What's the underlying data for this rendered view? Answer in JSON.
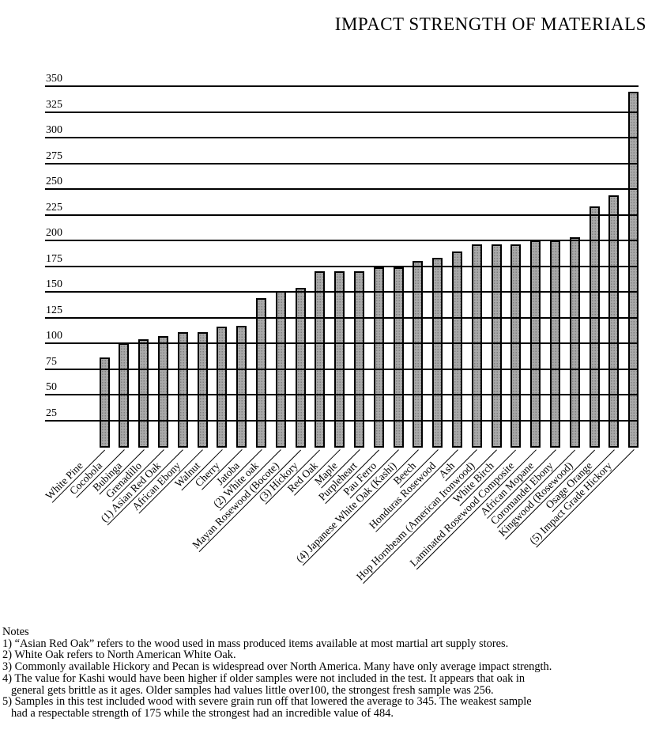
{
  "title": "IMPACT STRENGTH OF MATERIALS",
  "chart_data": {
    "type": "bar",
    "title": "IMPACT STRENGTH OF MATERIALS",
    "xlabel": "",
    "ylabel": "",
    "ylim": [
      0,
      350
    ],
    "ytick_step": 25,
    "yticks": [
      350,
      325,
      300,
      275,
      250,
      225,
      200,
      175,
      150,
      125,
      100,
      75,
      50,
      25
    ],
    "grid": true,
    "gridlines_over_bars": true,
    "legend": "none",
    "bar_color": "#a9a9a9",
    "bar_border_color": "#000000",
    "categories": [
      "White Pine",
      "Cocobola",
      "Bubinga",
      "Grenadillo",
      "(1) Asian Red Oak",
      "African Ebony",
      "Walnut",
      "Cherry",
      "Jatoba",
      "(2) White oak",
      "Mayan Rosewood (Bocote)",
      "(3) Hickory",
      "Red Oak",
      "Maple",
      "Purpleheart",
      "Pau Ferro",
      "(4) Japanese White Oak (Kashi)",
      "Beech",
      "Honduras Rosewood",
      "Ash",
      "Hop Hornbeam (American Ironwood)",
      "White Birch",
      "Laminated Rosewood Composite",
      "African Mopane",
      "Coromandel Ebony",
      "Kingwood (Rosewood)",
      "Osage Orange",
      "(5) Impact Grade Hickory"
    ],
    "values": [
      86,
      100,
      104,
      107,
      111,
      111,
      116,
      117,
      144,
      151,
      154,
      170,
      170,
      170,
      174,
      174,
      180,
      183,
      189,
      196,
      196,
      196,
      200,
      200,
      203,
      233,
      244,
      345
    ]
  },
  "notes": {
    "heading": "Notes",
    "lines": [
      {
        "text": "1) “Asian Red Oak” refers to the wood used in mass produced items available at most martial art supply stores.",
        "indent": 0
      },
      {
        "text": "2) White Oak refers to North American White Oak.",
        "indent": 0
      },
      {
        "text": "3) Commonly available Hickory and Pecan is widespread over North America. Many have only average impact strength.",
        "indent": 0
      },
      {
        "text": "4) The value for Kashi would have been higher if older samples were not included in the test. It appears that oak in",
        "indent": 0
      },
      {
        "text": "general gets brittle as it ages. Older samples had values little over100, the strongest fresh sample was 256.",
        "indent": 1
      },
      {
        "text": "5) Samples in this test included wood with severe grain run off that lowered the average to 345. The weakest sample",
        "indent": 0
      },
      {
        "text": "had a respectable strength of 175 while the strongest had an incredible value of 484.",
        "indent": 1
      }
    ]
  }
}
